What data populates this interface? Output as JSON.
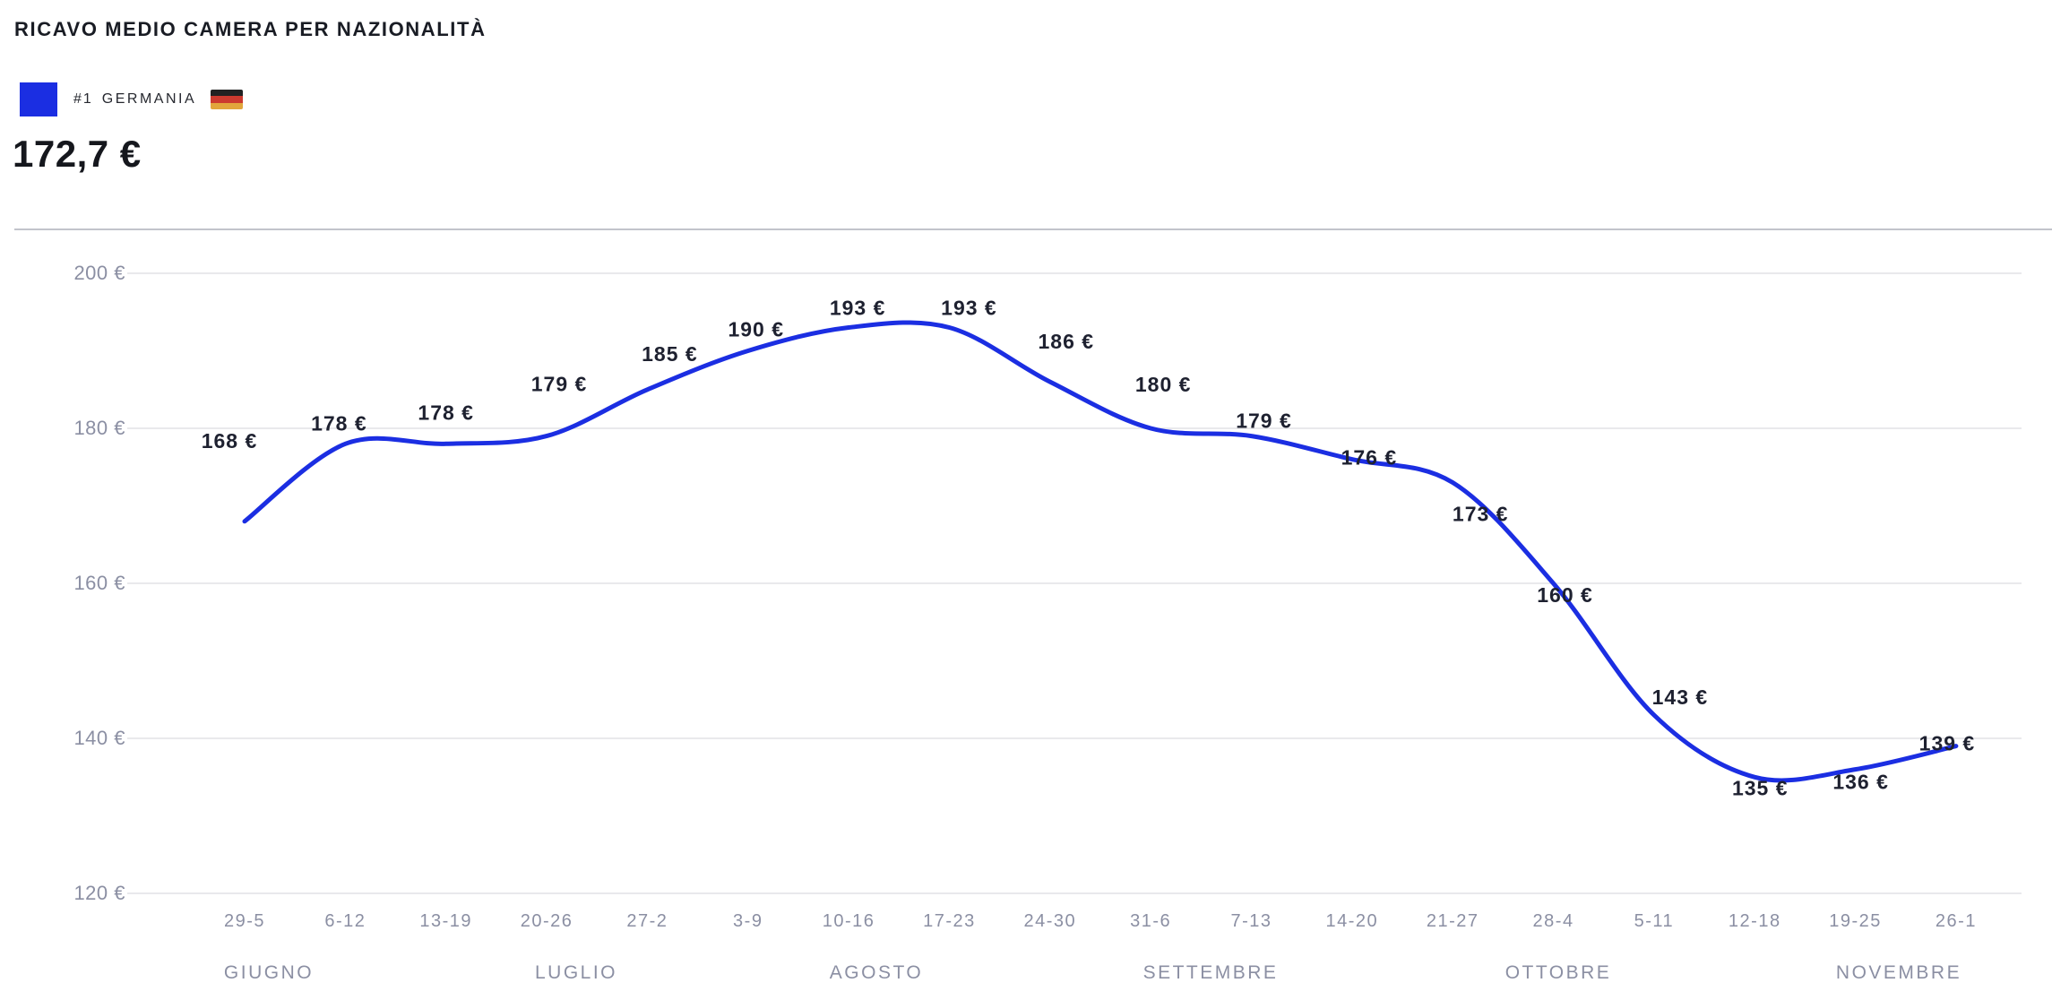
{
  "header": {
    "title": "RICAVO MEDIO CAMERA PER NAZIONALITÀ",
    "legend": {
      "rank": "#1",
      "country": "GERMANIA",
      "flag": "germany-flag",
      "swatch_color": "#1b2ee2"
    },
    "value": "172,7 €"
  },
  "chart_data": {
    "type": "line",
    "title": "RICAVO MEDIO CAMERA PER NAZIONALITÀ",
    "series": [
      {
        "name": "#1 GERMANIA",
        "color": "#1b2ee2",
        "values": [
          168,
          178,
          178,
          179,
          185,
          190,
          193,
          193,
          186,
          180,
          179,
          176,
          173,
          160,
          143,
          135,
          136,
          139
        ]
      }
    ],
    "categories": [
      "29-5",
      "6-12",
      "13-19",
      "20-26",
      "27-2",
      "3-9",
      "10-16",
      "17-23",
      "24-30",
      "31-6",
      "7-13",
      "14-20",
      "21-27",
      "28-4",
      "5-11",
      "12-18",
      "19-25",
      "26-1"
    ],
    "month_labels": [
      "GIUGNO",
      "LUGLIO",
      "AGOSTO",
      "SETTEMBRE",
      "OTTOBRE",
      "NOVEMBRE"
    ],
    "data_labels": [
      "168 €",
      "178 €",
      "178 €",
      "179 €",
      "185 €",
      "190 €",
      "193 €",
      "193 €",
      "186 €",
      "180 €",
      "179 €",
      "176 €",
      "173 €",
      "160 €",
      "143 €",
      "135 €",
      "136 €",
      "139 €"
    ],
    "y_ticks": [
      "200 €",
      "180 €",
      "160 €",
      "140 €",
      "120 €"
    ],
    "y_tick_values": [
      200,
      180,
      160,
      140,
      120
    ],
    "ylim": [
      120,
      200
    ],
    "xlabel": "",
    "ylabel": "",
    "grid": true,
    "legend_position": "top-left",
    "colors": {
      "line": "#1b2ee2",
      "gridline": "#e9e9ec",
      "axis_text": "#8b8fa3",
      "data_label_text": "#1e2130"
    }
  }
}
